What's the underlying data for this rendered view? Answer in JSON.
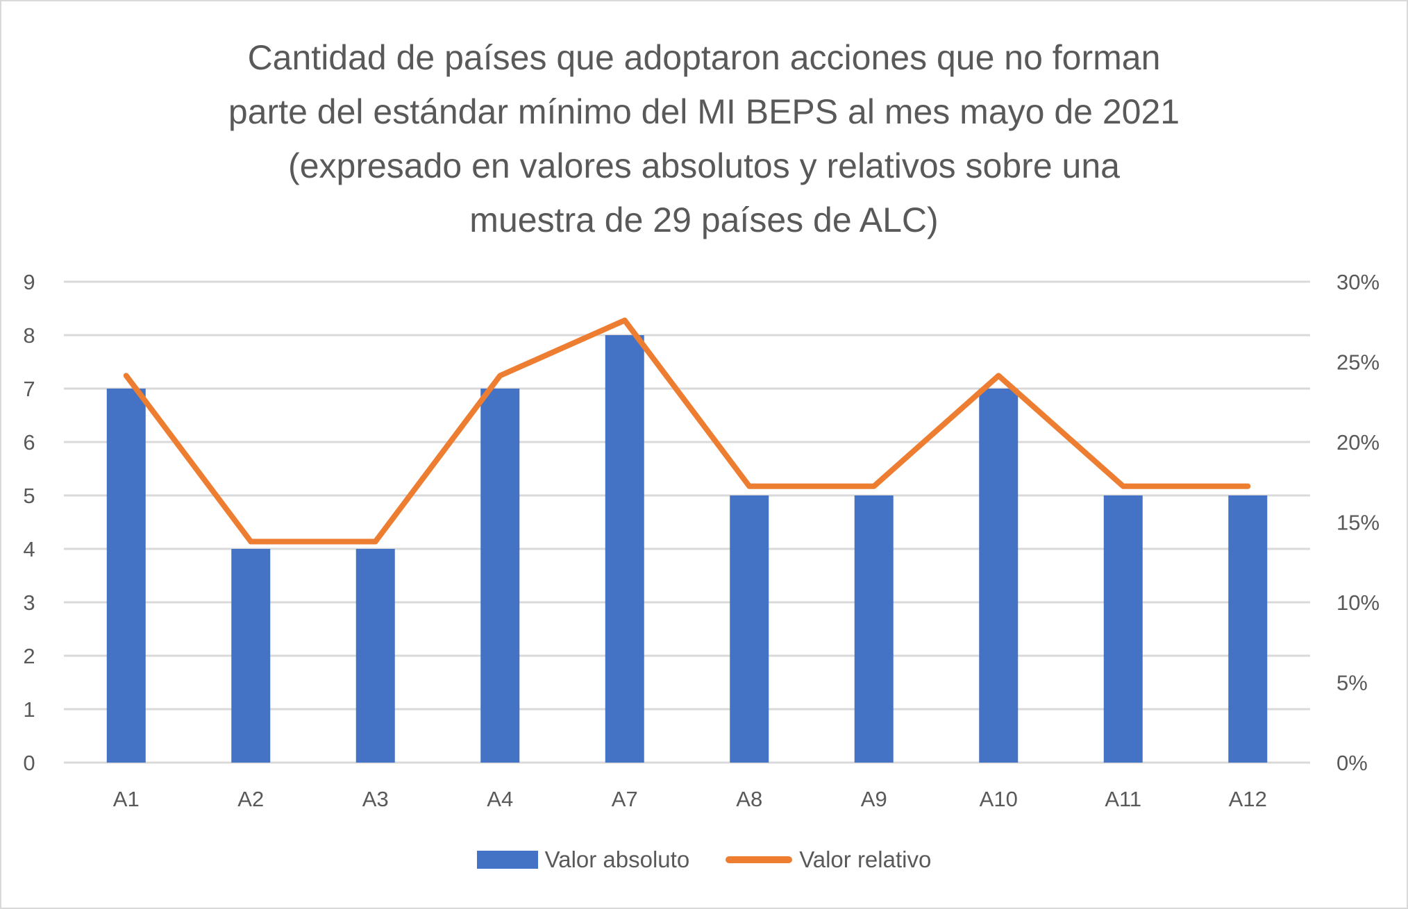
{
  "chart_data": {
    "type": "bar",
    "title_lines": [
      "Cantidad de países que adoptaron acciones que no forman",
      "parte del estándar mínimo del MI BEPS al mes mayo de 2021",
      "(expresado en valores absolutos y relativos sobre una",
      "muestra de 29 países de ALC)"
    ],
    "categories": [
      "A1",
      "A2",
      "A3",
      "A4",
      "A7",
      "A8",
      "A9",
      "A10",
      "A11",
      "A12"
    ],
    "series": [
      {
        "name": "Valor absoluto",
        "type": "bar",
        "axis": "left",
        "color": "#4472C4",
        "values": [
          7,
          4,
          4,
          7,
          8,
          5,
          5,
          7,
          5,
          5
        ]
      },
      {
        "name": "Valor relativo",
        "type": "line",
        "axis": "right",
        "color": "#ED7D31",
        "values": [
          0.2414,
          0.1379,
          0.1379,
          0.2414,
          0.2759,
          0.1724,
          0.1724,
          0.2414,
          0.1724,
          0.1724
        ]
      }
    ],
    "y_left": {
      "min": 0,
      "max": 9,
      "ticks": [
        "0",
        "1",
        "2",
        "3",
        "4",
        "5",
        "6",
        "7",
        "8",
        "9"
      ]
    },
    "y_right": {
      "min": 0,
      "max": 0.3,
      "ticks": [
        "0%",
        "5%",
        "10%",
        "15%",
        "20%",
        "25%",
        "30%"
      ]
    },
    "xlabel": "",
    "ylabel": "",
    "grid": true,
    "legend_position": "bottom"
  }
}
